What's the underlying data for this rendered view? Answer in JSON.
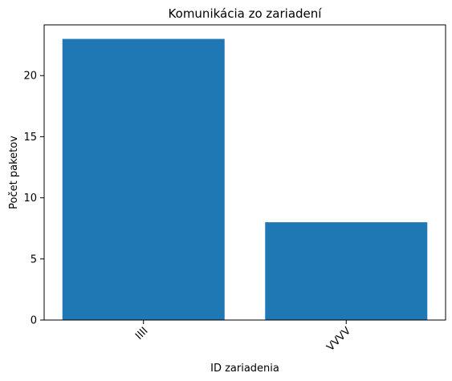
{
  "chart_data": {
    "type": "bar",
    "title": "Komunikácia zo zariadení",
    "xlabel": "ID zariadenia",
    "ylabel": "Počet paketov",
    "categories": [
      "IIII",
      "VVVV"
    ],
    "values": [
      23,
      8
    ],
    "ylim": [
      0,
      24.15
    ],
    "yticks": [
      0,
      5,
      10,
      15,
      20
    ],
    "xtick_rotation_deg": 45,
    "grid": false,
    "bar_color": "#1f77b4"
  }
}
